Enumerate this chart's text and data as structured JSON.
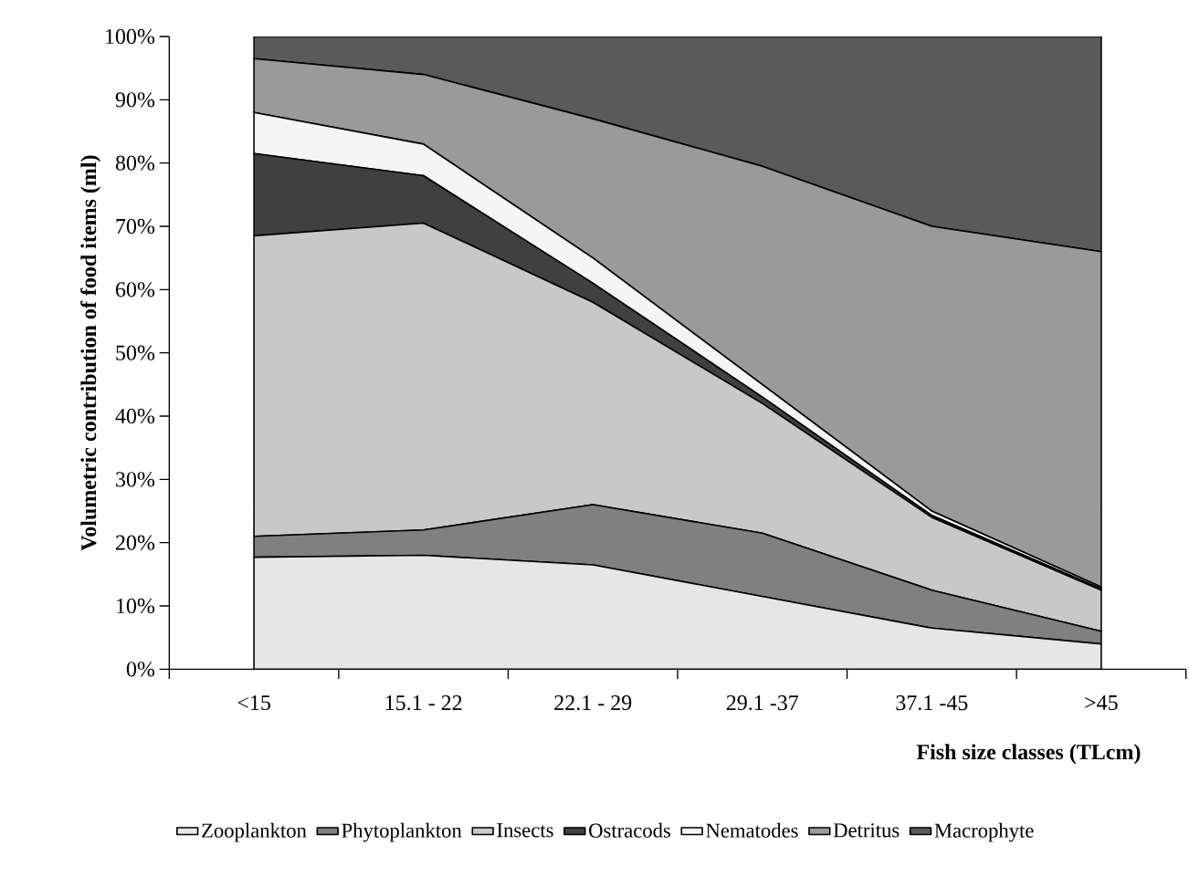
{
  "chart_data": {
    "type": "area",
    "stacked": true,
    "xlabel": "Fish size classes (TLcm)",
    "ylabel": "Volumetric contribution of food items (ml)",
    "categories": [
      "<15",
      "15.1 - 22",
      "22.1 - 29",
      "29.1 -37",
      "37.1 -45",
      ">45"
    ],
    "ylim": [
      0,
      100
    ],
    "yticks": [
      {
        "value": 0,
        "label": "0%"
      },
      {
        "value": 10,
        "label": "10%"
      },
      {
        "value": 20,
        "label": "20%"
      },
      {
        "value": 30,
        "label": "30%"
      },
      {
        "value": 40,
        "label": "40%"
      },
      {
        "value": 50,
        "label": "50%"
      },
      {
        "value": 60,
        "label": "60%"
      },
      {
        "value": 70,
        "label": "70%"
      },
      {
        "value": 80,
        "label": "80%"
      },
      {
        "value": 90,
        "label": "90%"
      },
      {
        "value": 100,
        "label": "100%"
      }
    ],
    "legend": "bottom",
    "grid": false,
    "series": [
      {
        "name": "Zooplankton",
        "color": "#e6e6e6",
        "values": [
          17.7,
          18,
          16.5,
          11.5,
          6.5,
          4
        ]
      },
      {
        "name": "Phytoplankton",
        "color": "#808080",
        "values": [
          3.3,
          4,
          9.5,
          10,
          6,
          2
        ]
      },
      {
        "name": "Insects",
        "color": "#c8c8c8",
        "values": [
          47.5,
          48.5,
          32,
          20.5,
          11.5,
          6.5
        ]
      },
      {
        "name": "Ostracods",
        "color": "#404040",
        "values": [
          13,
          7.5,
          3,
          1,
          0.3,
          0.2
        ]
      },
      {
        "name": "Nematodes",
        "color": "#f5f5f5",
        "values": [
          6.5,
          5,
          4,
          2,
          0.7,
          0.3
        ]
      },
      {
        "name": "Detritus",
        "color": "#9a9a9a",
        "values": [
          8.5,
          11,
          22,
          34.5,
          45,
          53
        ]
      },
      {
        "name": "Macrophyte",
        "color": "#5a5a5a",
        "values": [
          3.5,
          6,
          13,
          20.5,
          30,
          34
        ]
      }
    ]
  }
}
